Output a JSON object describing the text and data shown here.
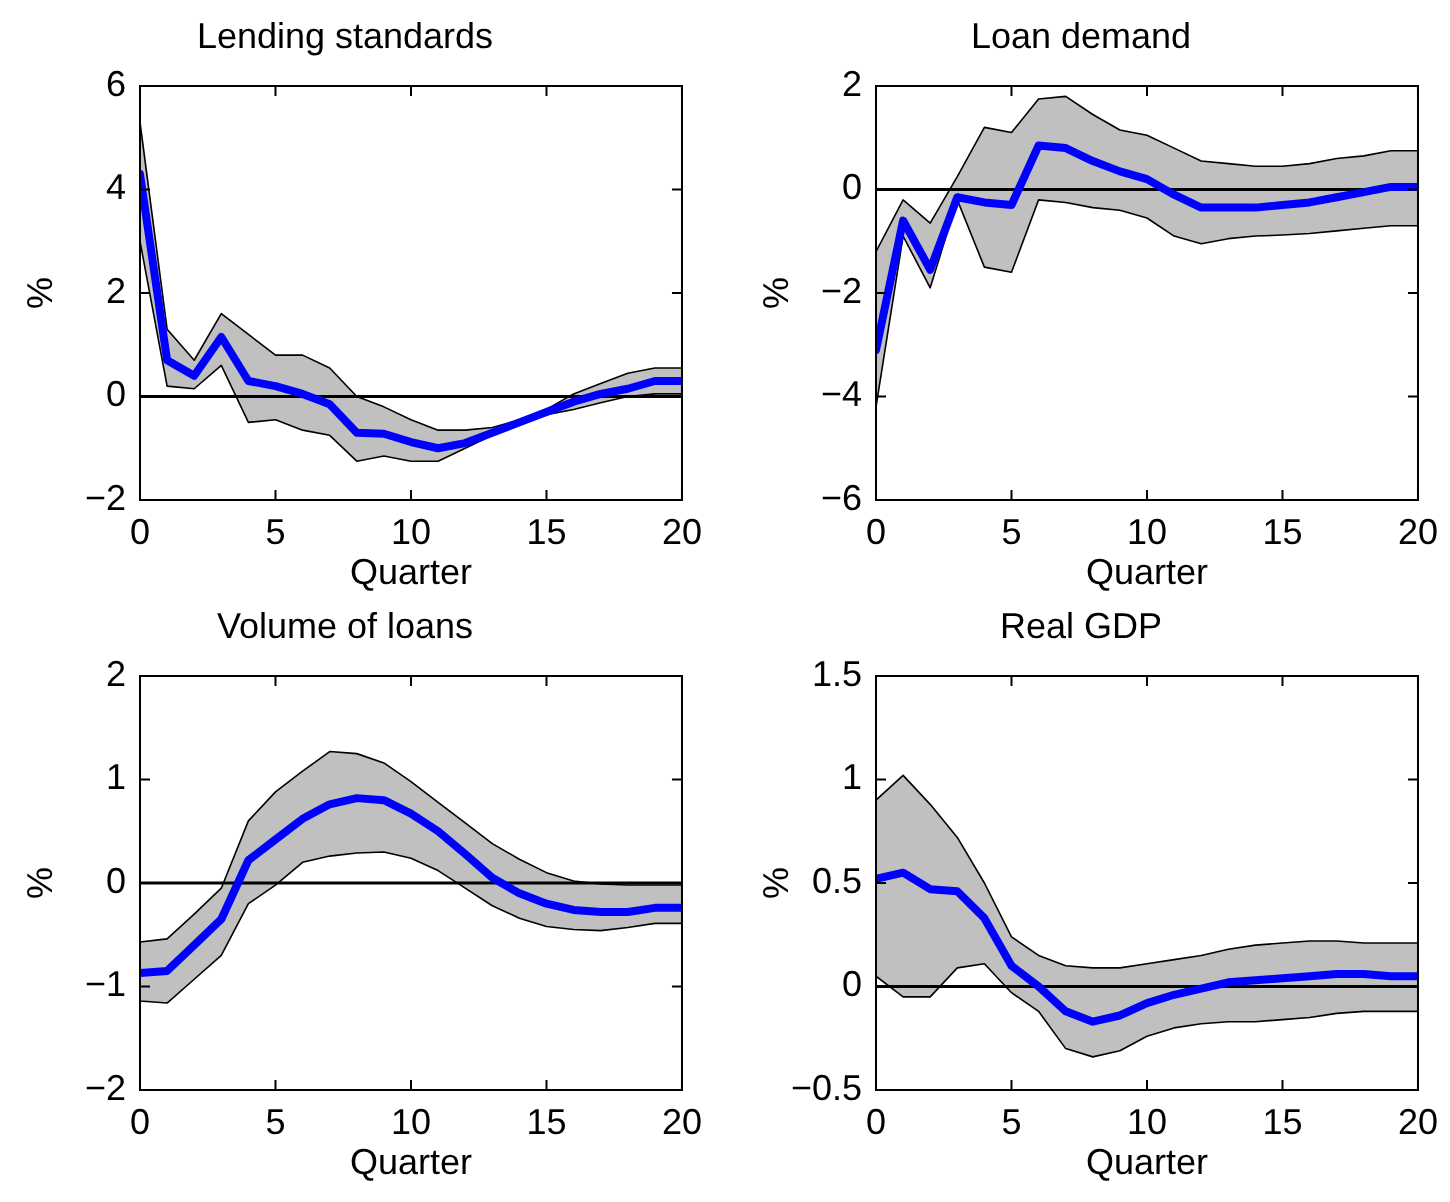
{
  "chart_data": [
    {
      "type": "line",
      "title": "Lending standards",
      "xlabel": "Quarter",
      "ylabel": "%",
      "x": [
        0,
        1,
        2,
        3,
        4,
        5,
        6,
        7,
        8,
        9,
        10,
        11,
        12,
        13,
        14,
        15,
        16,
        17,
        18,
        19,
        20
      ],
      "xlim": [
        0,
        20
      ],
      "xticks": [
        0,
        5,
        10,
        15,
        20
      ],
      "ylim": [
        -2,
        6
      ],
      "yticks": [
        {
          "value": -2,
          "label": "−2"
        },
        0,
        2,
        4,
        6
      ],
      "series": [
        {
          "color": "#0000ff",
          "values": [
            4.3,
            0.7,
            0.4,
            1.15,
            0.3,
            0.2,
            0.05,
            -0.15,
            -0.7,
            -0.72,
            -0.88,
            -1.0,
            -0.9,
            -0.7,
            -0.5,
            -0.3,
            -0.1,
            0.05,
            0.15,
            0.3,
            0.3
          ],
          "upper": [
            5.3,
            1.3,
            0.7,
            1.6,
            1.2,
            0.8,
            0.8,
            0.55,
            0.0,
            -0.2,
            -0.45,
            -0.65,
            -0.65,
            -0.6,
            -0.45,
            -0.25,
            0.05,
            0.25,
            0.45,
            0.55,
            0.55
          ],
          "lower": [
            3.0,
            0.2,
            0.15,
            0.6,
            -0.5,
            -0.45,
            -0.65,
            -0.75,
            -1.25,
            -1.15,
            -1.25,
            -1.25,
            -1.0,
            -0.75,
            -0.5,
            -0.35,
            -0.25,
            -0.12,
            0.0,
            0.05,
            0.05
          ]
        }
      ],
      "ref_lines": [
        {
          "axis": "y",
          "value": 0,
          "color": "#000000"
        }
      ]
    },
    {
      "type": "line",
      "title": "Loan demand",
      "xlabel": "Quarter",
      "ylabel": "%",
      "x": [
        0,
        1,
        2,
        3,
        4,
        5,
        6,
        7,
        8,
        9,
        10,
        11,
        12,
        13,
        14,
        15,
        16,
        17,
        18,
        19,
        20
      ],
      "xlim": [
        0,
        20
      ],
      "xticks": [
        0,
        5,
        10,
        15,
        20
      ],
      "ylim": [
        -6,
        2
      ],
      "yticks": [
        {
          "value": -6,
          "label": "−6"
        },
        {
          "value": -4,
          "label": "−4"
        },
        {
          "value": -2,
          "label": "−2"
        },
        0,
        2
      ],
      "series": [
        {
          "color": "#0000ff",
          "values": [
            -3.1,
            -0.6,
            -1.55,
            -0.15,
            -0.25,
            -0.3,
            0.85,
            0.8,
            0.55,
            0.35,
            0.2,
            -0.1,
            -0.35,
            -0.35,
            -0.35,
            -0.3,
            -0.25,
            -0.15,
            -0.05,
            0.05,
            0.05
          ],
          "upper": [
            -1.2,
            -0.2,
            -0.65,
            0.25,
            1.2,
            1.1,
            1.75,
            1.8,
            1.45,
            1.15,
            1.05,
            0.8,
            0.55,
            0.5,
            0.45,
            0.45,
            0.5,
            0.6,
            0.65,
            0.75,
            0.75
          ],
          "lower": [
            -4.2,
            -0.9,
            -1.9,
            -0.2,
            -1.5,
            -1.6,
            -0.2,
            -0.25,
            -0.35,
            -0.4,
            -0.55,
            -0.9,
            -1.05,
            -0.95,
            -0.9,
            -0.88,
            -0.85,
            -0.8,
            -0.75,
            -0.7,
            -0.7
          ]
        }
      ],
      "ref_lines": [
        {
          "axis": "y",
          "value": 0,
          "color": "#000000"
        }
      ]
    },
    {
      "type": "line",
      "title": "Volume of loans",
      "xlabel": "Quarter",
      "ylabel": "%",
      "x": [
        0,
        1,
        2,
        3,
        4,
        5,
        6,
        7,
        8,
        9,
        10,
        11,
        12,
        13,
        14,
        15,
        16,
        17,
        18,
        19,
        20
      ],
      "xlim": [
        0,
        20
      ],
      "xticks": [
        0,
        5,
        10,
        15,
        20
      ],
      "ylim": [
        -2,
        2
      ],
      "yticks": [
        {
          "value": -2,
          "label": "−2"
        },
        {
          "value": -1,
          "label": "−1"
        },
        0,
        1,
        2
      ],
      "series": [
        {
          "color": "#0000ff",
          "values": [
            -0.87,
            -0.85,
            -0.6,
            -0.35,
            0.22,
            0.42,
            0.62,
            0.76,
            0.82,
            0.8,
            0.67,
            0.5,
            0.28,
            0.05,
            -0.1,
            -0.2,
            -0.26,
            -0.28,
            -0.28,
            -0.24,
            -0.24
          ],
          "upper": [
            -0.57,
            -0.54,
            -0.3,
            -0.05,
            0.6,
            0.88,
            1.08,
            1.27,
            1.25,
            1.16,
            0.98,
            0.78,
            0.58,
            0.38,
            0.23,
            0.1,
            0.02,
            -0.01,
            -0.02,
            -0.02,
            -0.02
          ],
          "lower": [
            -1.14,
            -1.16,
            -0.93,
            -0.7,
            -0.2,
            -0.02,
            0.2,
            0.26,
            0.29,
            0.3,
            0.24,
            0.12,
            -0.05,
            -0.22,
            -0.34,
            -0.42,
            -0.45,
            -0.46,
            -0.43,
            -0.39,
            -0.39
          ]
        }
      ],
      "ref_lines": [
        {
          "axis": "y",
          "value": 0,
          "color": "#000000"
        }
      ]
    },
    {
      "type": "line",
      "title": "Real GDP",
      "xlabel": "Quarter",
      "ylabel": "%",
      "x": [
        0,
        1,
        2,
        3,
        4,
        5,
        6,
        7,
        8,
        9,
        10,
        11,
        12,
        13,
        14,
        15,
        16,
        17,
        18,
        19,
        20
      ],
      "xlim": [
        0,
        20
      ],
      "xticks": [
        0,
        5,
        10,
        15,
        20
      ],
      "ylim": [
        -0.5,
        1.5
      ],
      "yticks": [
        {
          "value": -0.5,
          "label": "−0.5"
        },
        0,
        0.5,
        1,
        1.5
      ],
      "series": [
        {
          "color": "#0000ff",
          "values": [
            0.52,
            0.55,
            0.47,
            0.46,
            0.33,
            0.1,
            0.0,
            -0.12,
            -0.17,
            -0.14,
            -0.08,
            -0.04,
            -0.01,
            0.02,
            0.03,
            0.04,
            0.05,
            0.06,
            0.06,
            0.05,
            0.05
          ],
          "upper": [
            0.9,
            1.02,
            0.88,
            0.72,
            0.5,
            0.24,
            0.15,
            0.1,
            0.09,
            0.09,
            0.11,
            0.13,
            0.15,
            0.18,
            0.2,
            0.21,
            0.22,
            0.22,
            0.21,
            0.21,
            0.21
          ],
          "lower": [
            0.05,
            -0.05,
            -0.05,
            0.09,
            0.11,
            -0.03,
            -0.12,
            -0.3,
            -0.34,
            -0.31,
            -0.24,
            -0.2,
            -0.18,
            -0.17,
            -0.17,
            -0.16,
            -0.15,
            -0.13,
            -0.12,
            -0.12,
            -0.12
          ]
        }
      ],
      "ref_lines": [
        {
          "axis": "y",
          "value": 0,
          "color": "#000000"
        }
      ]
    }
  ]
}
